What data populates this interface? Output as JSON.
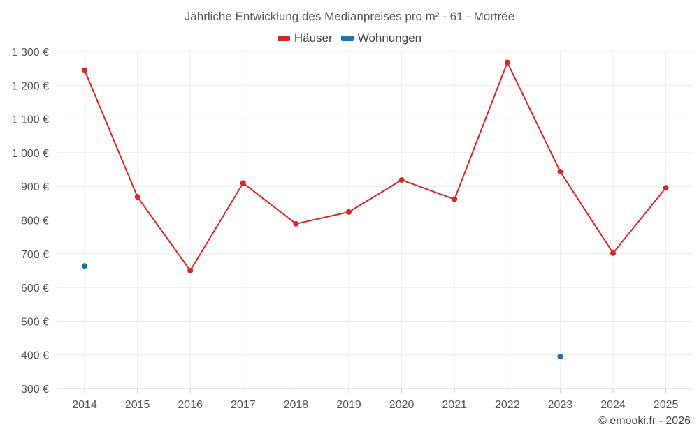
{
  "chart_data": {
    "type": "line",
    "title": "Jährliche Entwicklung des Medianpreises pro m² - 61 - Mortrée",
    "xlabel": "",
    "ylabel": "",
    "categories": [
      "2014",
      "2015",
      "2016",
      "2017",
      "2018",
      "2019",
      "2020",
      "2021",
      "2022",
      "2023",
      "2024",
      "2025"
    ],
    "ylim": [
      300,
      1300
    ],
    "yticks": [
      300,
      400,
      500,
      600,
      700,
      800,
      900,
      1000,
      1100,
      1200,
      1300
    ],
    "ytick_labels": [
      "300 €",
      "400 €",
      "500 €",
      "600 €",
      "700 €",
      "800 €",
      "900 €",
      "1 000 €",
      "1 100 €",
      "1 200 €",
      "1 300 €"
    ],
    "grid": true,
    "legend_position": "top-center",
    "series": [
      {
        "name": "Häuser",
        "color": "#d62728",
        "connect": true,
        "values": [
          1245,
          869,
          650,
          910,
          789,
          824,
          919,
          862,
          1268,
          944,
          702,
          896
        ]
      },
      {
        "name": "Wohnungen",
        "color": "#1f6fa8",
        "connect": false,
        "values": [
          664,
          null,
          null,
          null,
          null,
          null,
          null,
          null,
          null,
          395,
          null,
          null
        ]
      }
    ]
  },
  "footer": {
    "credit": "© emooki.fr - 2026"
  }
}
